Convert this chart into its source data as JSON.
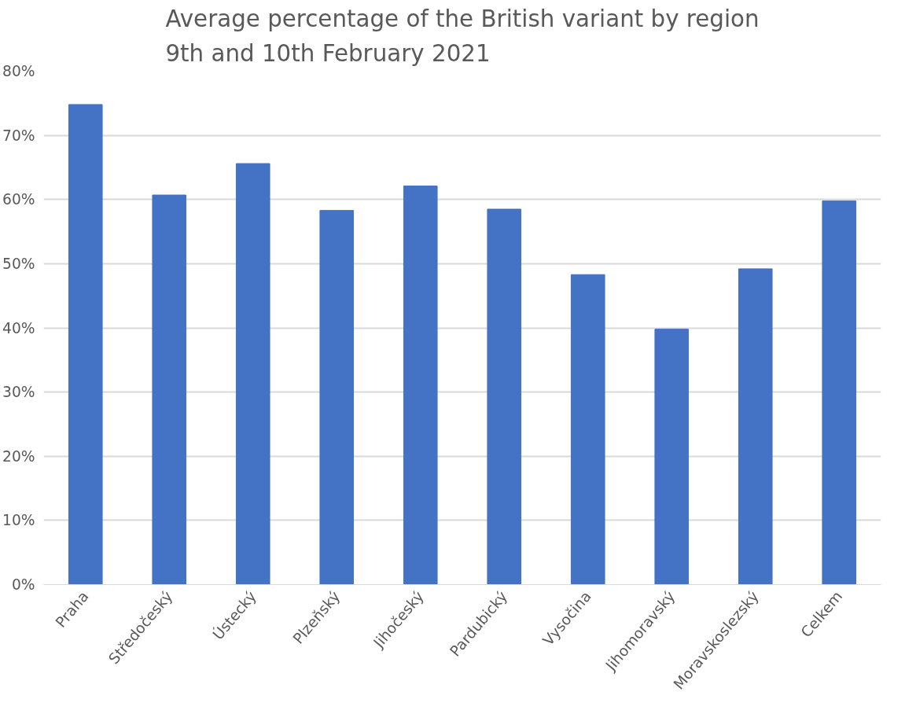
{
  "chart_data": {
    "type": "bar",
    "title": "Average percentage of the British variant by region\n9th and 10th February 2021",
    "categories": [
      "Praha",
      "Středočeský",
      "Ústecký",
      "Plzeňský",
      "Jihočeský",
      "Pardubický",
      "Vysočina",
      "Jihomoravský",
      "Moravskoslezský",
      "Celkem"
    ],
    "values": [
      74.8,
      60.7,
      65.6,
      58.3,
      62.1,
      58.5,
      48.3,
      39.8,
      49.2,
      59.8
    ],
    "color": "#4472c4",
    "ylim": [
      0,
      80
    ],
    "yticks": [
      {
        "value": 0,
        "label": "0%"
      },
      {
        "value": 10,
        "label": "10%"
      },
      {
        "value": 20,
        "label": "20%"
      },
      {
        "value": 30,
        "label": "30%"
      },
      {
        "value": 40,
        "label": "40%"
      },
      {
        "value": 50,
        "label": "50%"
      },
      {
        "value": 60,
        "label": "60%"
      },
      {
        "value": 70,
        "label": "70%"
      },
      {
        "value": 80,
        "label": "80%"
      }
    ],
    "grid": "y"
  }
}
